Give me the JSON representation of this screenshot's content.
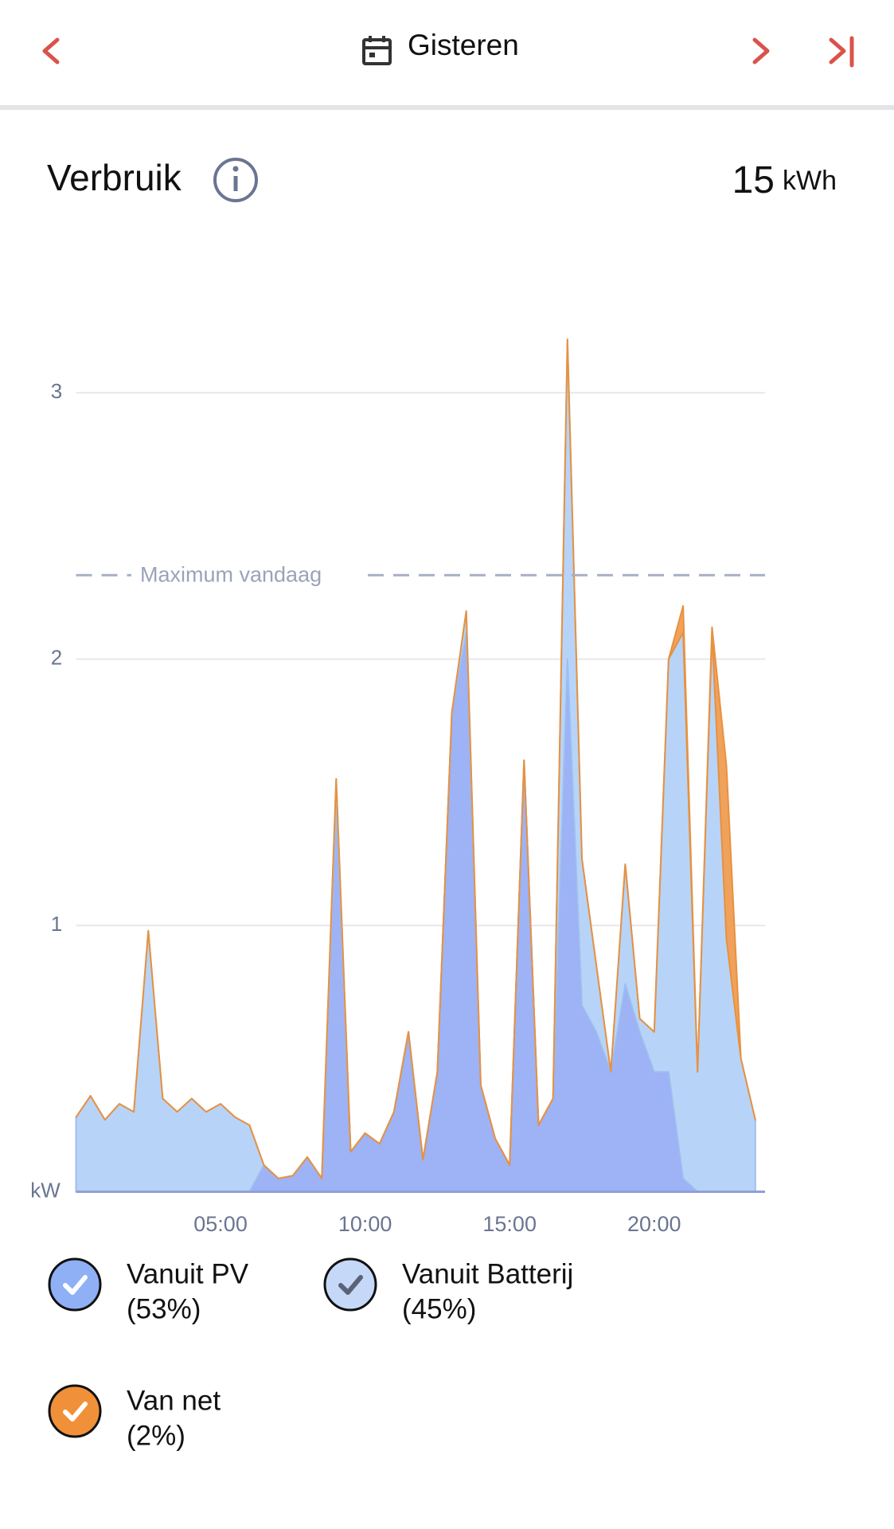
{
  "header": {
    "title": "Gisteren"
  },
  "summary": {
    "title": "Verbruik",
    "total": "15",
    "unit": "kWh"
  },
  "chart_data": {
    "type": "stacked_area",
    "x": [
      0,
      0.5,
      1,
      1.5,
      2,
      2.5,
      3,
      3.5,
      4,
      4.5,
      5,
      5.5,
      6,
      6.5,
      7,
      7.5,
      8,
      8.5,
      9,
      9.5,
      10,
      10.5,
      11,
      11.5,
      12,
      12.5,
      13,
      13.5,
      14,
      14.5,
      15,
      15.5,
      16,
      16.5,
      17,
      17.5,
      18,
      18.5,
      19,
      19.5,
      20,
      20.5,
      21,
      21.5,
      22,
      22.5,
      23,
      23.5
    ],
    "xlim": [
      0,
      24
    ],
    "xticks": [
      {
        "value": 5,
        "label": "05:00"
      },
      {
        "value": 10,
        "label": "10:00"
      },
      {
        "value": 15,
        "label": "15:00"
      },
      {
        "value": 20,
        "label": "20:00"
      }
    ],
    "ylim": [
      0,
      3.5
    ],
    "yticks": [
      {
        "value": 0,
        "label": "kW"
      },
      1,
      2,
      3
    ],
    "grid": true,
    "max_line": {
      "value": 2.315,
      "label": "Maximum vandaag"
    },
    "series": [
      {
        "name": "Vanuit PV",
        "share_label": "(53%)",
        "color": "#9db3f5",
        "stroke": "#7f9ae8",
        "icon": "#8fb0f5",
        "check": "#ffffff",
        "values": [
          0,
          0,
          0,
          0,
          0,
          0,
          0,
          0,
          0,
          0,
          0,
          0,
          0,
          0.1,
          0.05,
          0.06,
          0.13,
          0.05,
          1.45,
          0.15,
          0.22,
          0.18,
          0.3,
          0.6,
          0.12,
          0.45,
          1.8,
          2.1,
          0.4,
          0.2,
          0.1,
          1.62,
          0.25,
          0.35,
          2.0,
          0.7,
          0.6,
          0.45,
          0.78,
          0.6,
          0.45,
          0.45,
          0.05,
          0,
          0,
          0,
          0,
          0
        ]
      },
      {
        "name": "Vanuit Batterij",
        "share_label": "(45%)",
        "color": "#b7d4f8",
        "stroke": "#9ebff0",
        "icon": "#c6d8f7",
        "check": "#5a6275",
        "values": [
          0.28,
          0.36,
          0.27,
          0.33,
          0.3,
          0.98,
          0.35,
          0.3,
          0.35,
          0.3,
          0.33,
          0.28,
          0.25,
          0,
          0,
          0,
          0,
          0,
          0.1,
          0,
          0,
          0,
          0,
          0,
          0,
          0,
          0,
          0.08,
          0,
          0,
          0,
          0,
          0,
          0,
          1.2,
          0.55,
          0.25,
          0,
          0.45,
          0.05,
          0.15,
          1.55,
          2.05,
          0.45,
          2.1,
          0.95,
          0.5,
          0.27
        ]
      },
      {
        "name": "Van net",
        "share_label": "(2%)",
        "color": "#f0a25c",
        "stroke": "#e8913e",
        "icon": "#f0913a",
        "check": "#ffffff",
        "values": [
          0,
          0,
          0,
          0,
          0,
          0,
          0,
          0,
          0,
          0,
          0,
          0,
          0,
          0,
          0,
          0,
          0,
          0,
          0,
          0,
          0,
          0,
          0,
          0,
          0,
          0,
          0,
          0,
          0,
          0,
          0,
          0,
          0,
          0,
          0,
          0,
          0,
          0,
          0,
          0,
          0,
          0,
          0.1,
          0,
          0.02,
          0.65,
          0,
          0
        ]
      }
    ]
  }
}
